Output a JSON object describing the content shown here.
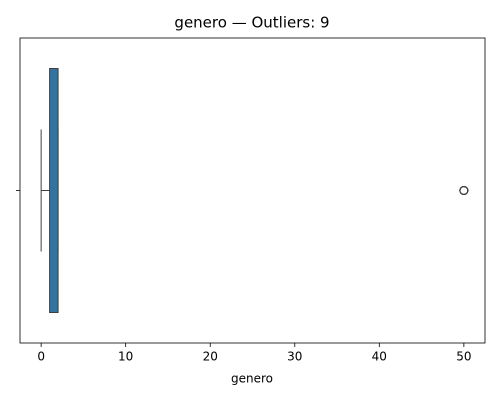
{
  "chart_data": {
    "type": "box",
    "title": "genero — Outliers: 9",
    "xlabel": "genero",
    "categories": [
      null
    ],
    "color": "#3274a1",
    "boxes": [
      {
        "min": 0,
        "q1": 1,
        "median": 2,
        "q3": 2,
        "max": 2,
        "outliers": [
          50,
          50,
          50,
          50,
          50,
          50,
          50,
          50,
          50
        ]
      }
    ],
    "xlim": [
      -2.5,
      52.5
    ],
    "xticks": [
      0,
      10,
      20,
      30,
      40,
      50
    ],
    "grid": false
  }
}
